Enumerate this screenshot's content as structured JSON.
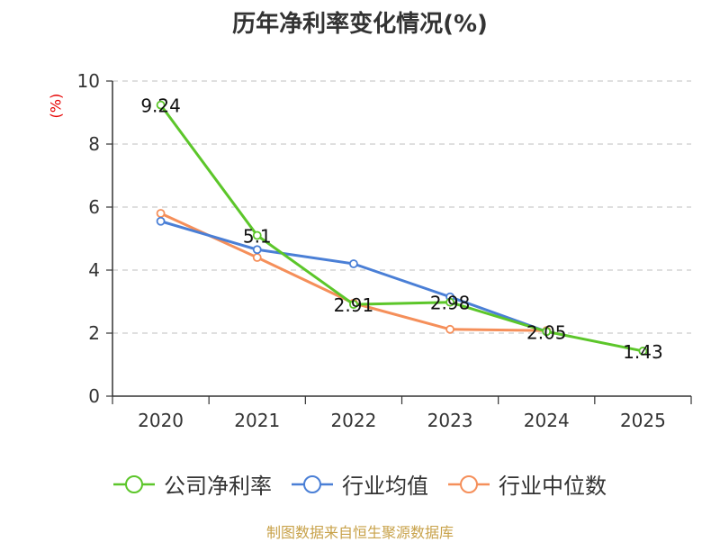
{
  "chart_data": {
    "type": "line",
    "title": "历年净利率变化情况(%)",
    "ylabel": "(%)",
    "xlabel": "",
    "categories": [
      "2020",
      "2021",
      "2022",
      "2023",
      "2024",
      "2025"
    ],
    "ylim": [
      0,
      10
    ],
    "yticks": [
      0,
      2,
      4,
      6,
      8,
      10
    ],
    "grid": true,
    "legend_position": "bottom",
    "series": [
      {
        "name": "公司净利率",
        "color": "#5cc62a",
        "values": [
          9.24,
          5.1,
          2.91,
          2.98,
          2.05,
          1.43
        ],
        "labels": [
          "9.24",
          "5.1",
          "2.91",
          "2.98",
          "2.05",
          "1.43"
        ]
      },
      {
        "name": "行业均值",
        "color": "#4a7fd6",
        "values": [
          5.55,
          4.65,
          4.2,
          3.15,
          2.05,
          null
        ]
      },
      {
        "name": "行业中位数",
        "color": "#f58f5a",
        "values": [
          5.8,
          4.4,
          2.95,
          2.12,
          2.08,
          null
        ]
      }
    ]
  },
  "source": "制图数据来自恒生聚源数据库"
}
